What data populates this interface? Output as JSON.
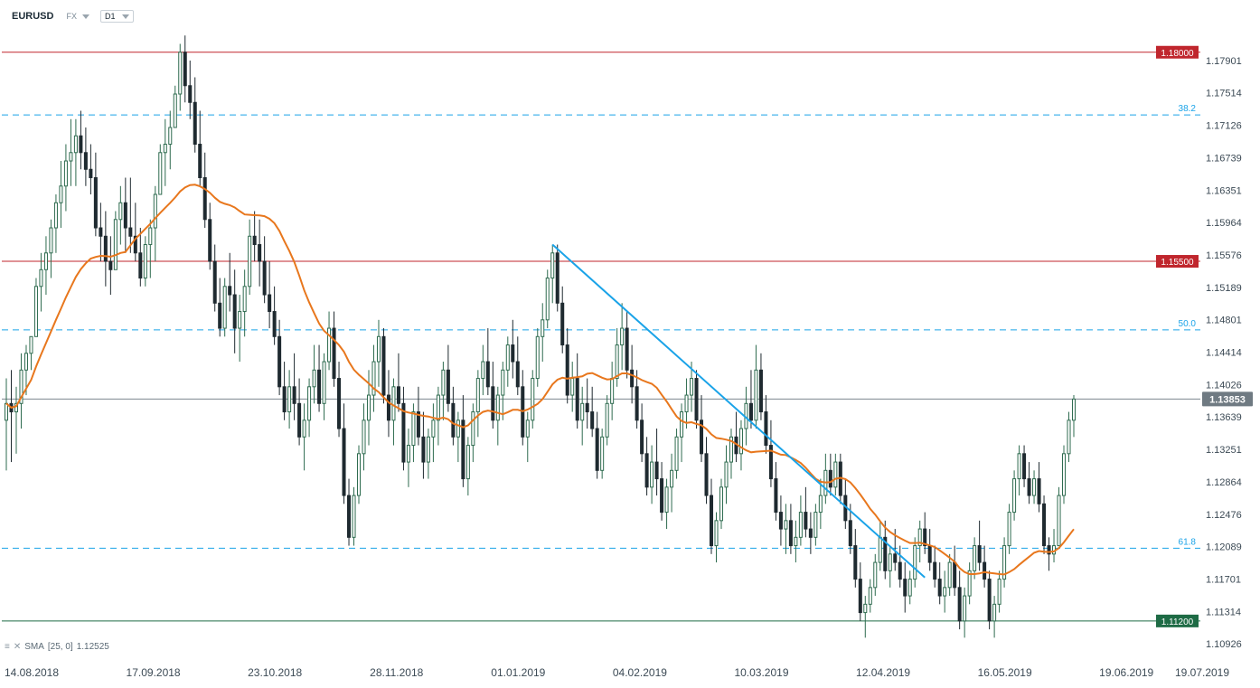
{
  "header": {
    "symbol": "EURUSD",
    "market": "FX",
    "timeframe": "D1"
  },
  "indicator": {
    "label": "SMA",
    "params": "[25, 0]",
    "value": "1.12525"
  },
  "colors": {
    "bull": "#2e6b4f",
    "bear": "#1f2a30",
    "sma": "#e8771d",
    "trend": "#1aa3e8",
    "resistance": "#c0262d",
    "support": "#1e6b45",
    "fib": "#1aa3e8",
    "current": "#7b868e"
  },
  "chart_data": {
    "type": "candlestick",
    "symbol": "EURUSD",
    "timeframe": "D1",
    "x_ticks": [
      "14.08.2018",
      "17.09.2018",
      "23.10.2018",
      "28.11.2018",
      "01.01.2019",
      "04.02.2019",
      "10.03.2019",
      "12.04.2019",
      "16.05.2019",
      "19.06.2019",
      "19.07.2019"
    ],
    "y_ticks": [
      "1.17901",
      "1.17514",
      "1.17126",
      "1.16739",
      "1.16351",
      "1.15964",
      "1.15576",
      "1.15189",
      "1.14801",
      "1.14414",
      "1.14026",
      "1.13639",
      "1.13251",
      "1.12864",
      "1.12476",
      "1.12089",
      "1.11701",
      "1.11314",
      "1.10926"
    ],
    "ylim": [
      1.1082,
      1.183
    ],
    "horizontal_levels": [
      {
        "label": "1.18000",
        "value": 1.18,
        "kind": "resistance"
      },
      {
        "label": "1.15500",
        "value": 1.155,
        "kind": "resistance"
      },
      {
        "label": "1.11200",
        "value": 1.112,
        "kind": "support"
      }
    ],
    "fib_levels": [
      {
        "label": "38.2",
        "value": 1.1725
      },
      {
        "label": "50.0",
        "value": 1.1468
      },
      {
        "label": "61.8",
        "value": 1.1207
      }
    ],
    "current_price": {
      "label": "1.13853",
      "value": 1.13853
    },
    "trendline": {
      "start": {
        "date": "01.01.2019",
        "price": 1.157
      },
      "end": {
        "date": "13.06.2019",
        "price": 1.1172
      }
    },
    "sma": {
      "period": 25,
      "last": 1.12525
    },
    "ohlc": [
      [
        1.136,
        1.141,
        1.13,
        1.138
      ],
      [
        1.138,
        1.142,
        1.131,
        1.137
      ],
      [
        1.137,
        1.14,
        1.132,
        1.138
      ],
      [
        1.138,
        1.144,
        1.135,
        1.142
      ],
      [
        1.142,
        1.145,
        1.139,
        1.144
      ],
      [
        1.144,
        1.146,
        1.142,
        1.146
      ],
      [
        1.146,
        1.153,
        1.146,
        1.152
      ],
      [
        1.152,
        1.156,
        1.149,
        1.154
      ],
      [
        1.154,
        1.158,
        1.151,
        1.156
      ],
      [
        1.156,
        1.16,
        1.153,
        1.159
      ],
      [
        1.159,
        1.163,
        1.156,
        1.162
      ],
      [
        1.162,
        1.167,
        1.159,
        1.164
      ],
      [
        1.164,
        1.169,
        1.161,
        1.167
      ],
      [
        1.167,
        1.172,
        1.164,
        1.168
      ],
      [
        1.168,
        1.172,
        1.164,
        1.17
      ],
      [
        1.17,
        1.173,
        1.166,
        1.168
      ],
      [
        1.168,
        1.171,
        1.164,
        1.166
      ],
      [
        1.166,
        1.169,
        1.163,
        1.165
      ],
      [
        1.165,
        1.168,
        1.158,
        1.159
      ],
      [
        1.159,
        1.162,
        1.155,
        1.158
      ],
      [
        1.158,
        1.161,
        1.152,
        1.155
      ],
      [
        1.155,
        1.158,
        1.151,
        1.154
      ],
      [
        1.154,
        1.161,
        1.154,
        1.16
      ],
      [
        1.16,
        1.164,
        1.157,
        1.162
      ],
      [
        1.162,
        1.165,
        1.156,
        1.159
      ],
      [
        1.159,
        1.165,
        1.156,
        1.158
      ],
      [
        1.158,
        1.162,
        1.155,
        1.156
      ],
      [
        1.156,
        1.159,
        1.152,
        1.153
      ],
      [
        1.153,
        1.158,
        1.152,
        1.157
      ],
      [
        1.157,
        1.16,
        1.153,
        1.159
      ],
      [
        1.159,
        1.164,
        1.155,
        1.163
      ],
      [
        1.163,
        1.169,
        1.163,
        1.168
      ],
      [
        1.168,
        1.172,
        1.164,
        1.169
      ],
      [
        1.169,
        1.173,
        1.166,
        1.171
      ],
      [
        1.171,
        1.176,
        1.171,
        1.175
      ],
      [
        1.175,
        1.181,
        1.173,
        1.18
      ],
      [
        1.18,
        1.182,
        1.174,
        1.176
      ],
      [
        1.176,
        1.179,
        1.172,
        1.174
      ],
      [
        1.174,
        1.177,
        1.168,
        1.169
      ],
      [
        1.169,
        1.173,
        1.164,
        1.165
      ],
      [
        1.165,
        1.168,
        1.159,
        1.16
      ],
      [
        1.16,
        1.162,
        1.154,
        1.155
      ],
      [
        1.155,
        1.157,
        1.149,
        1.15
      ],
      [
        1.15,
        1.153,
        1.146,
        1.147
      ],
      [
        1.147,
        1.153,
        1.146,
        1.152
      ],
      [
        1.152,
        1.156,
        1.149,
        1.151
      ],
      [
        1.151,
        1.154,
        1.144,
        1.147
      ],
      [
        1.147,
        1.151,
        1.143,
        1.149
      ],
      [
        1.149,
        1.154,
        1.146,
        1.152
      ],
      [
        1.152,
        1.16,
        1.151,
        1.158
      ],
      [
        1.158,
        1.161,
        1.155,
        1.157
      ],
      [
        1.157,
        1.16,
        1.152,
        1.155
      ],
      [
        1.155,
        1.158,
        1.15,
        1.151
      ],
      [
        1.151,
        1.155,
        1.147,
        1.149
      ],
      [
        1.149,
        1.152,
        1.145,
        1.146
      ],
      [
        1.146,
        1.148,
        1.139,
        1.14
      ],
      [
        1.14,
        1.143,
        1.136,
        1.137
      ],
      [
        1.137,
        1.142,
        1.135,
        1.14
      ],
      [
        1.14,
        1.144,
        1.136,
        1.138
      ],
      [
        1.138,
        1.141,
        1.133,
        1.134
      ],
      [
        1.134,
        1.138,
        1.13,
        1.136
      ],
      [
        1.136,
        1.141,
        1.134,
        1.14
      ],
      [
        1.14,
        1.145,
        1.138,
        1.142
      ],
      [
        1.142,
        1.145,
        1.137,
        1.138
      ],
      [
        1.138,
        1.144,
        1.136,
        1.143
      ],
      [
        1.143,
        1.149,
        1.142,
        1.147
      ],
      [
        1.147,
        1.149,
        1.14,
        1.141
      ],
      [
        1.141,
        1.143,
        1.134,
        1.135
      ],
      [
        1.135,
        1.138,
        1.126,
        1.127
      ],
      [
        1.127,
        1.129,
        1.121,
        1.122
      ],
      [
        1.122,
        1.128,
        1.121,
        1.127
      ],
      [
        1.127,
        1.133,
        1.126,
        1.132
      ],
      [
        1.132,
        1.138,
        1.13,
        1.136
      ],
      [
        1.136,
        1.142,
        1.133,
        1.139
      ],
      [
        1.139,
        1.145,
        1.137,
        1.143
      ],
      [
        1.143,
        1.148,
        1.14,
        1.146
      ],
      [
        1.146,
        1.147,
        1.138,
        1.139
      ],
      [
        1.139,
        1.142,
        1.134,
        1.136
      ],
      [
        1.136,
        1.141,
        1.133,
        1.14
      ],
      [
        1.14,
        1.144,
        1.137,
        1.138
      ],
      [
        1.138,
        1.14,
        1.13,
        1.131
      ],
      [
        1.131,
        1.135,
        1.128,
        1.133
      ],
      [
        1.133,
        1.138,
        1.131,
        1.137
      ],
      [
        1.137,
        1.14,
        1.133,
        1.134
      ],
      [
        1.134,
        1.137,
        1.129,
        1.131
      ],
      [
        1.131,
        1.135,
        1.129,
        1.134
      ],
      [
        1.134,
        1.138,
        1.131,
        1.136
      ],
      [
        1.136,
        1.14,
        1.133,
        1.139
      ],
      [
        1.139,
        1.143,
        1.136,
        1.142
      ],
      [
        1.142,
        1.145,
        1.137,
        1.138
      ],
      [
        1.138,
        1.14,
        1.133,
        1.134
      ],
      [
        1.134,
        1.137,
        1.131,
        1.136
      ],
      [
        1.136,
        1.139,
        1.128,
        1.129
      ],
      [
        1.129,
        1.134,
        1.127,
        1.133
      ],
      [
        1.133,
        1.138,
        1.131,
        1.137
      ],
      [
        1.137,
        1.142,
        1.134,
        1.141
      ],
      [
        1.141,
        1.145,
        1.139,
        1.143
      ],
      [
        1.143,
        1.147,
        1.139,
        1.14
      ],
      [
        1.14,
        1.143,
        1.135,
        1.136
      ],
      [
        1.136,
        1.14,
        1.133,
        1.139
      ],
      [
        1.139,
        1.143,
        1.136,
        1.142
      ],
      [
        1.142,
        1.146,
        1.14,
        1.145
      ],
      [
        1.145,
        1.148,
        1.141,
        1.143
      ],
      [
        1.143,
        1.146,
        1.139,
        1.14
      ],
      [
        1.14,
        1.142,
        1.133,
        1.134
      ],
      [
        1.134,
        1.137,
        1.131,
        1.136
      ],
      [
        1.136,
        1.142,
        1.135,
        1.141
      ],
      [
        1.141,
        1.147,
        1.14,
        1.146
      ],
      [
        1.146,
        1.15,
        1.143,
        1.148
      ],
      [
        1.148,
        1.154,
        1.147,
        1.153
      ],
      [
        1.153,
        1.157,
        1.15,
        1.156
      ],
      [
        1.156,
        1.157,
        1.149,
        1.15
      ],
      [
        1.15,
        1.152,
        1.144,
        1.145
      ],
      [
        1.145,
        1.147,
        1.138,
        1.139
      ],
      [
        1.139,
        1.143,
        1.137,
        1.141
      ],
      [
        1.141,
        1.144,
        1.135,
        1.136
      ],
      [
        1.136,
        1.14,
        1.133,
        1.138
      ],
      [
        1.138,
        1.141,
        1.135,
        1.137
      ],
      [
        1.137,
        1.14,
        1.134,
        1.135
      ],
      [
        1.135,
        1.137,
        1.129,
        1.13
      ],
      [
        1.13,
        1.135,
        1.129,
        1.134
      ],
      [
        1.134,
        1.139,
        1.133,
        1.138
      ],
      [
        1.138,
        1.143,
        1.136,
        1.141
      ],
      [
        1.141,
        1.147,
        1.14,
        1.145
      ],
      [
        1.145,
        1.15,
        1.142,
        1.147
      ],
      [
        1.147,
        1.149,
        1.141,
        1.142
      ],
      [
        1.142,
        1.145,
        1.138,
        1.14
      ],
      [
        1.14,
        1.142,
        1.135,
        1.136
      ],
      [
        1.136,
        1.138,
        1.131,
        1.132
      ],
      [
        1.132,
        1.134,
        1.127,
        1.128
      ],
      [
        1.128,
        1.133,
        1.126,
        1.131
      ],
      [
        1.131,
        1.135,
        1.127,
        1.129
      ],
      [
        1.129,
        1.131,
        1.124,
        1.125
      ],
      [
        1.125,
        1.129,
        1.123,
        1.128
      ],
      [
        1.128,
        1.132,
        1.125,
        1.13
      ],
      [
        1.13,
        1.135,
        1.129,
        1.134
      ],
      [
        1.134,
        1.138,
        1.131,
        1.137
      ],
      [
        1.137,
        1.141,
        1.135,
        1.139
      ],
      [
        1.139,
        1.143,
        1.137,
        1.141
      ],
      [
        1.141,
        1.142,
        1.135,
        1.136
      ],
      [
        1.136,
        1.139,
        1.131,
        1.132
      ],
      [
        1.132,
        1.134,
        1.126,
        1.127
      ],
      [
        1.127,
        1.129,
        1.12,
        1.121
      ],
      [
        1.121,
        1.125,
        1.119,
        1.124
      ],
      [
        1.124,
        1.129,
        1.123,
        1.128
      ],
      [
        1.128,
        1.133,
        1.126,
        1.131
      ],
      [
        1.131,
        1.135,
        1.129,
        1.134
      ],
      [
        1.134,
        1.137,
        1.131,
        1.132
      ],
      [
        1.132,
        1.136,
        1.13,
        1.135
      ],
      [
        1.135,
        1.14,
        1.133,
        1.138
      ],
      [
        1.138,
        1.142,
        1.135,
        1.136
      ],
      [
        1.136,
        1.145,
        1.135,
        1.142
      ],
      [
        1.142,
        1.144,
        1.136,
        1.137
      ],
      [
        1.137,
        1.139,
        1.132,
        1.133
      ],
      [
        1.133,
        1.136,
        1.128,
        1.129
      ],
      [
        1.129,
        1.131,
        1.124,
        1.125
      ],
      [
        1.125,
        1.127,
        1.121,
        1.123
      ],
      [
        1.123,
        1.126,
        1.12,
        1.124
      ],
      [
        1.124,
        1.126,
        1.12,
        1.121
      ],
      [
        1.121,
        1.124,
        1.119,
        1.122
      ],
      [
        1.122,
        1.127,
        1.121,
        1.125
      ],
      [
        1.125,
        1.128,
        1.122,
        1.123
      ],
      [
        1.123,
        1.125,
        1.12,
        1.122
      ],
      [
        1.122,
        1.126,
        1.121,
        1.125
      ],
      [
        1.125,
        1.129,
        1.123,
        1.127
      ],
      [
        1.127,
        1.132,
        1.126,
        1.13
      ],
      [
        1.13,
        1.132,
        1.127,
        1.128
      ],
      [
        1.128,
        1.132,
        1.127,
        1.131
      ],
      [
        1.131,
        1.132,
        1.126,
        1.127
      ],
      [
        1.127,
        1.129,
        1.123,
        1.124
      ],
      [
        1.124,
        1.126,
        1.12,
        1.121
      ],
      [
        1.121,
        1.123,
        1.116,
        1.117
      ],
      [
        1.117,
        1.119,
        1.112,
        1.113
      ],
      [
        1.113,
        1.115,
        1.11,
        1.114
      ],
      [
        1.114,
        1.117,
        1.113,
        1.116
      ],
      [
        1.116,
        1.12,
        1.115,
        1.119
      ],
      [
        1.119,
        1.124,
        1.118,
        1.122
      ],
      [
        1.122,
        1.124,
        1.117,
        1.118
      ],
      [
        1.118,
        1.121,
        1.116,
        1.12
      ],
      [
        1.12,
        1.123,
        1.118,
        1.119
      ],
      [
        1.119,
        1.121,
        1.116,
        1.117
      ],
      [
        1.117,
        1.119,
        1.113,
        1.115
      ],
      [
        1.115,
        1.118,
        1.114,
        1.117
      ],
      [
        1.117,
        1.122,
        1.116,
        1.121
      ],
      [
        1.121,
        1.124,
        1.119,
        1.123
      ],
      [
        1.123,
        1.125,
        1.12,
        1.121
      ],
      [
        1.121,
        1.123,
        1.118,
        1.119
      ],
      [
        1.119,
        1.121,
        1.116,
        1.117
      ],
      [
        1.117,
        1.119,
        1.114,
        1.115
      ],
      [
        1.115,
        1.118,
        1.113,
        1.116
      ],
      [
        1.116,
        1.12,
        1.115,
        1.119
      ],
      [
        1.119,
        1.121,
        1.115,
        1.116
      ],
      [
        1.116,
        1.118,
        1.111,
        1.112
      ],
      [
        1.112,
        1.116,
        1.11,
        1.115
      ],
      [
        1.115,
        1.119,
        1.114,
        1.118
      ],
      [
        1.118,
        1.122,
        1.117,
        1.121
      ],
      [
        1.121,
        1.124,
        1.118,
        1.119
      ],
      [
        1.119,
        1.121,
        1.116,
        1.117
      ],
      [
        1.117,
        1.118,
        1.111,
        1.112
      ],
      [
        1.112,
        1.115,
        1.11,
        1.114
      ],
      [
        1.114,
        1.118,
        1.113,
        1.117
      ],
      [
        1.117,
        1.122,
        1.116,
        1.121
      ],
      [
        1.121,
        1.126,
        1.12,
        1.125
      ],
      [
        1.125,
        1.13,
        1.124,
        1.129
      ],
      [
        1.129,
        1.133,
        1.127,
        1.132
      ],
      [
        1.132,
        1.133,
        1.128,
        1.129
      ],
      [
        1.129,
        1.131,
        1.126,
        1.127
      ],
      [
        1.127,
        1.13,
        1.126,
        1.129
      ],
      [
        1.129,
        1.131,
        1.125,
        1.126
      ],
      [
        1.126,
        1.127,
        1.12,
        1.121
      ],
      [
        1.121,
        1.122,
        1.118,
        1.12
      ],
      [
        1.12,
        1.123,
        1.119,
        1.121
      ],
      [
        1.121,
        1.128,
        1.121,
        1.127
      ],
      [
        1.127,
        1.133,
        1.126,
        1.132
      ],
      [
        1.132,
        1.137,
        1.131,
        1.136
      ],
      [
        1.136,
        1.139,
        1.134,
        1.13853
      ]
    ]
  }
}
